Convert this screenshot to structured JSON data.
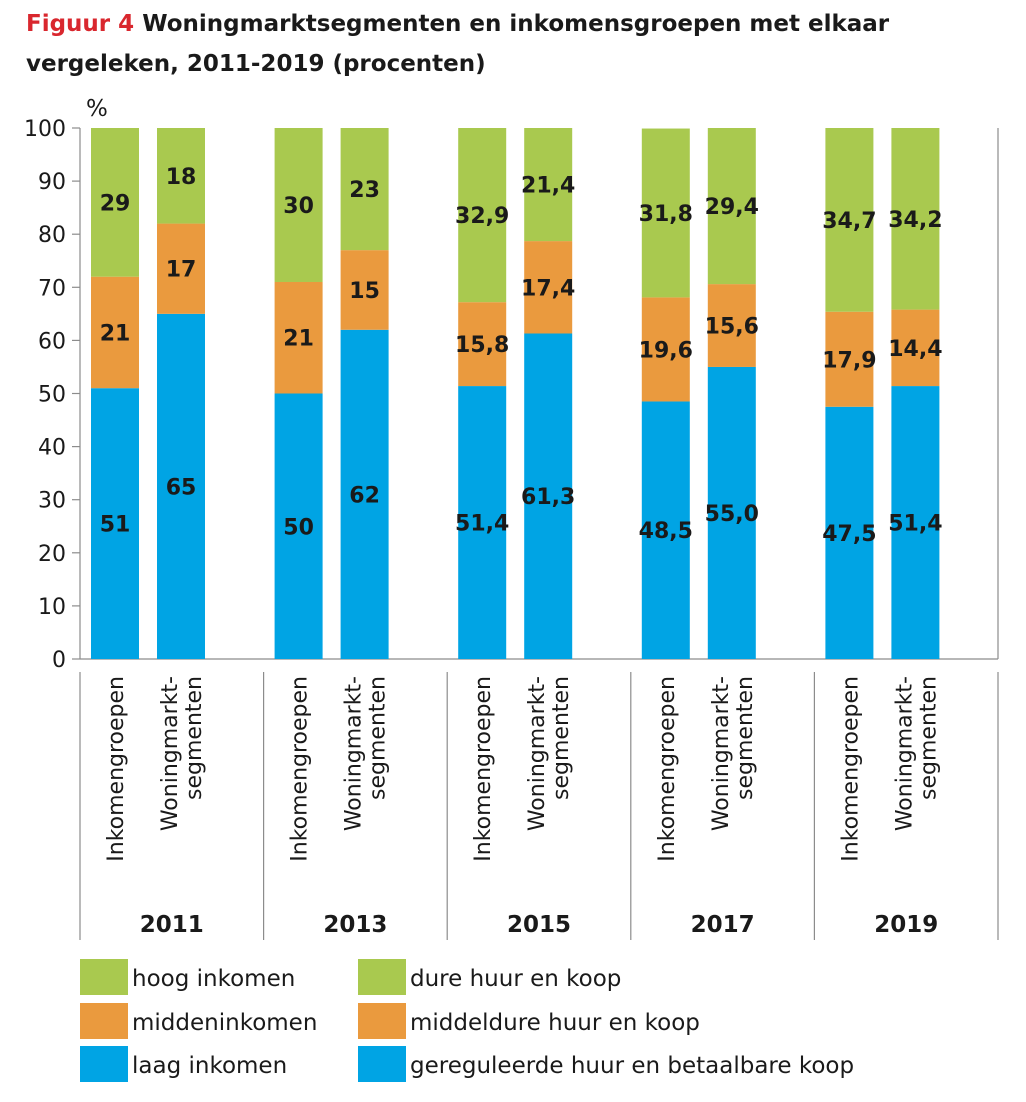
{
  "figure": {
    "label": "Figuur 4",
    "title": "Woningmarktsegmenten en inkomensgroepen met elkaar vergeleken, 2011-2019 (procenten)"
  },
  "colors": {
    "laag": "#00a4e4",
    "midden": "#ea9a3e",
    "hoog": "#a9c94f",
    "axis": "#8c8c8c"
  },
  "chart_data": {
    "type": "bar",
    "stacked": true,
    "ylabel": "%",
    "ylim": [
      0,
      100
    ],
    "yticks": [
      0,
      10,
      20,
      30,
      40,
      50,
      60,
      70,
      80,
      90,
      100
    ],
    "groups": [
      "2011",
      "2013",
      "2015",
      "2017",
      "2019"
    ],
    "bar_labels": [
      "Inkomengroepen",
      "Woningmarkt-\nsegmenten"
    ],
    "bars": [
      {
        "group": "2011",
        "kind": "Inkomengroepen",
        "values": [
          51,
          21,
          29
        ],
        "labels": [
          "51",
          "21",
          "29"
        ]
      },
      {
        "group": "2011",
        "kind": "Woningmarktsegmenten",
        "values": [
          65,
          17,
          18
        ],
        "labels": [
          "65",
          "17",
          "18"
        ]
      },
      {
        "group": "2013",
        "kind": "Inkomengroepen",
        "values": [
          50,
          21,
          30
        ],
        "labels": [
          "50",
          "21",
          "30"
        ]
      },
      {
        "group": "2013",
        "kind": "Woningmarktsegmenten",
        "values": [
          62,
          15,
          23
        ],
        "labels": [
          "62",
          "15",
          "23"
        ]
      },
      {
        "group": "2015",
        "kind": "Inkomengroepen",
        "values": [
          51.4,
          15.8,
          32.9
        ],
        "labels": [
          "51,4",
          "15,8",
          "32,9"
        ]
      },
      {
        "group": "2015",
        "kind": "Woningmarktsegmenten",
        "values": [
          61.3,
          17.4,
          21.4
        ],
        "labels": [
          "61,3",
          "17,4",
          "21,4"
        ]
      },
      {
        "group": "2017",
        "kind": "Inkomengroepen",
        "values": [
          48.5,
          19.6,
          31.8
        ],
        "labels": [
          "48,5",
          "19,6",
          "31,8"
        ]
      },
      {
        "group": "2017",
        "kind": "Woningmarktsegmenten",
        "values": [
          55.0,
          15.6,
          29.4
        ],
        "labels": [
          "55,0",
          "15,6",
          "29,4"
        ]
      },
      {
        "group": "2019",
        "kind": "Inkomengroepen",
        "values": [
          47.5,
          17.9,
          34.7
        ],
        "labels": [
          "47,5",
          "17,9",
          "34,7"
        ]
      },
      {
        "group": "2019",
        "kind": "Woningmarktsegmenten",
        "values": [
          51.4,
          14.4,
          34.2
        ],
        "labels": [
          "51,4",
          "14,4",
          "34,2"
        ]
      }
    ],
    "series": [
      {
        "key": "laag",
        "inkomen_name": "laag inkomen",
        "segment_name": "gereguleerde huur en betaalbare koop"
      },
      {
        "key": "midden",
        "inkomen_name": "middeninkomen",
        "segment_name": "middeldure huur en koop"
      },
      {
        "key": "hoog",
        "inkomen_name": "hoog inkomen",
        "segment_name": "dure huur en koop"
      }
    ],
    "legend": {
      "left": [
        "hoog inkomen",
        "middeninkomen",
        "laag inkomen"
      ],
      "right": [
        "dure huur en koop",
        "middeldure huur en koop",
        "gereguleerde huur en betaalbare koop"
      ]
    }
  }
}
